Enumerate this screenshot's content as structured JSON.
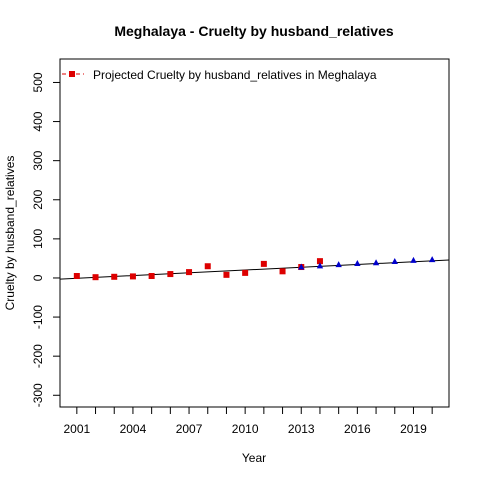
{
  "chart_data": {
    "type": "scatter",
    "title": "Meghalaya  -  Cruelty by husband_relatives",
    "xlabel": "Year",
    "ylabel": "Cruelty by husband_relatives",
    "xlim": [
      2000.1,
      2020.9
    ],
    "ylim": [
      -330,
      560
    ],
    "x_ticks": [
      2001,
      2002,
      2003,
      2004,
      2005,
      2006,
      2007,
      2008,
      2009,
      2010,
      2011,
      2012,
      2013,
      2014,
      2015,
      2016,
      2017,
      2018,
      2019,
      2020
    ],
    "x_tick_labels": [
      "2001",
      "2004",
      "2007",
      "2010",
      "2013",
      "2016",
      "2019"
    ],
    "y_ticks": [
      -300,
      -200,
      -100,
      0,
      100,
      200,
      300,
      400,
      500
    ],
    "y_tick_labels": [
      "-300",
      "-200",
      "-100",
      "0",
      "100",
      "200",
      "300",
      "400",
      "500"
    ],
    "grid": false,
    "legend_position": "top-left",
    "legend": [
      {
        "label": "Projected  Cruelty by husband_relatives  in  Meghalaya",
        "color": "#dd0000",
        "marker": "square",
        "line": "dashed"
      }
    ],
    "series": [
      {
        "name": "Projected  Cruelty by husband_relatives  in  Meghalaya",
        "marker": "square",
        "color": "#dd0000",
        "x": [
          2001,
          2002,
          2003,
          2004,
          2005,
          2006,
          2007,
          2008,
          2009,
          2010,
          2011,
          2012,
          2013,
          2014
        ],
        "y": [
          5,
          2,
          3,
          4,
          5,
          10,
          15,
          30,
          8,
          13,
          36,
          17,
          28,
          43
        ]
      },
      {
        "marker": "triangle",
        "color": "#0000cc",
        "x": [
          2013,
          2014,
          2015,
          2016,
          2017,
          2018,
          2019,
          2020
        ],
        "y": [
          28,
          31,
          34,
          37,
          39,
          42,
          45,
          47
        ]
      }
    ],
    "trend_line": {
      "color": "#000000",
      "x": [
        2000.1,
        2020.9
      ],
      "y": [
        -3,
        46
      ]
    }
  }
}
